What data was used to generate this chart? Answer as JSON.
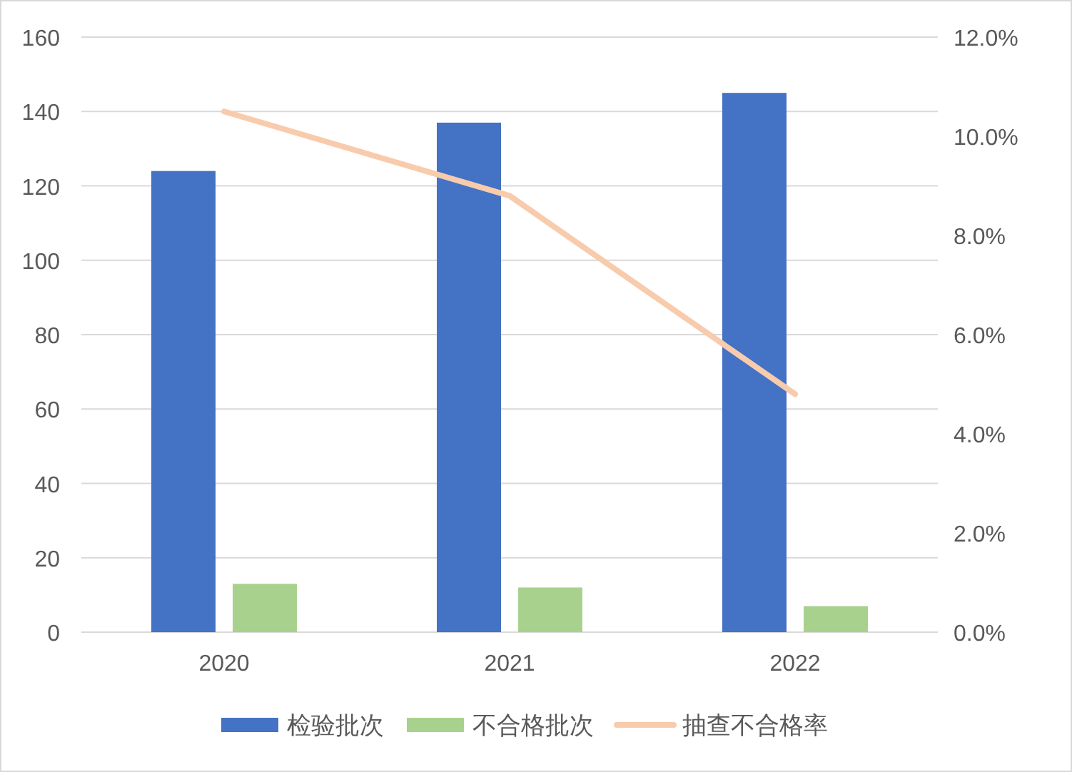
{
  "chart_data": {
    "type": "bar",
    "categories": [
      "2020",
      "2021",
      "2022"
    ],
    "series": [
      {
        "name": "检验批次",
        "color": "#4472c4",
        "values": [
          124,
          137,
          145
        ]
      },
      {
        "name": "不合格批次",
        "color": "#a9d18e",
        "values": [
          13,
          12,
          7
        ]
      },
      {
        "name": "抽查不合格率",
        "color": "#f8cbad",
        "type": "line",
        "axis": "y2",
        "values": [
          10.5,
          8.8,
          4.8
        ]
      }
    ],
    "ylim": [
      0,
      160
    ],
    "yticks": [
      0,
      20,
      40,
      60,
      80,
      100,
      120,
      140,
      160
    ],
    "y2lim": [
      0,
      12
    ],
    "y2ticks": [
      {
        "value": 0,
        "label": "0.0%"
      },
      {
        "value": 2,
        "label": "2.0%"
      },
      {
        "value": 4,
        "label": "4.0%"
      },
      {
        "value": 6,
        "label": "6.0%"
      },
      {
        "value": 8,
        "label": "8.0%"
      },
      {
        "value": 10,
        "label": "10.0%"
      },
      {
        "value": 12,
        "label": "12.0%"
      }
    ],
    "grid": "y",
    "legend": "bottom",
    "marker": "none"
  }
}
